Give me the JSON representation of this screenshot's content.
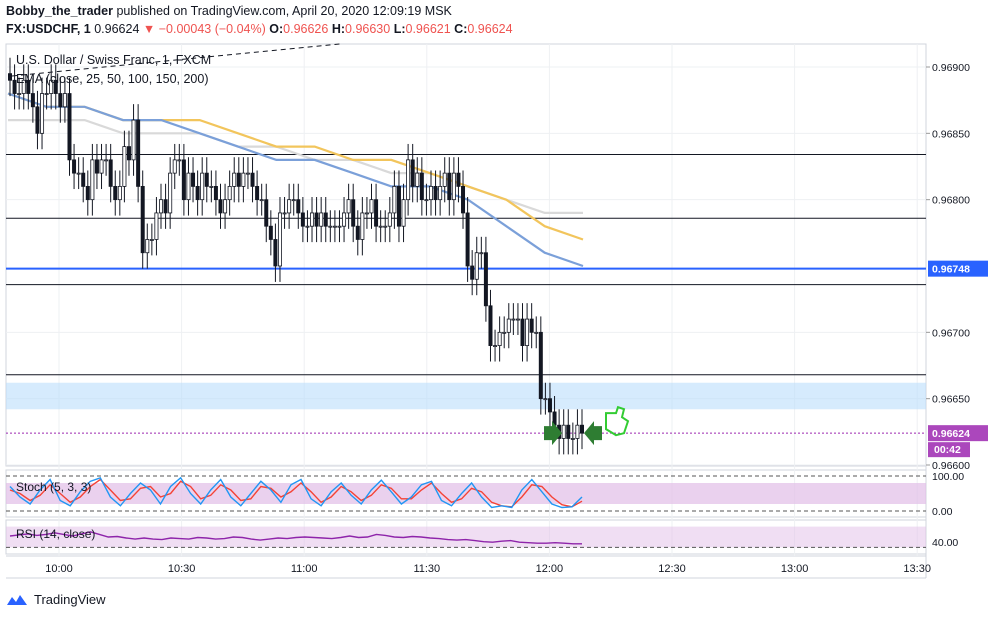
{
  "header": {
    "author": "Bobby_the_trader",
    "published_text": " published on TradingView.com, April 20, 2020 12:09:19 MSK",
    "symbol": "FX:USDCHF, 1",
    "last": "0.96624",
    "change": "▼ −0.00043 (−0.04%)",
    "o_label": "O:",
    "o_val": "0.96626",
    "h_label": "H:",
    "h_val": "0.96630",
    "l_label": "L:",
    "l_val": "0.96621",
    "c_label": "C:",
    "c_val": "0.96624"
  },
  "legend": {
    "instrument": "U.S. Dollar / Swiss Franc, 1, FXCM",
    "ma": "EMA (close, 25, 50, 100, 150, 200)"
  },
  "footer": {
    "brand": "TradingView"
  },
  "colors": {
    "up": "#131722",
    "down": "#131722",
    "ema_fast": "#f2c55c",
    "ema_mid": "#7ba0d9",
    "ema_slow": "#d9d9d9",
    "support": "#2962ff",
    "zone": "#bbdefb",
    "last_price": "#9c27b0",
    "osc_bg": "#e1bee7",
    "stoch_k": "#2196f3",
    "stoch_d": "#f44336",
    "rsi": "#8e24aa",
    "signal_arrow": "#2e7d32",
    "signal_hand": "#33cc33"
  },
  "chart_data": {
    "type": "candlestick",
    "main_pane": {
      "y_ticks": [
        "0.96900",
        "0.96850",
        "0.96800",
        "0.96700",
        "0.96650",
        "0.96600"
      ],
      "ylim": [
        0.9659,
        0.9693
      ],
      "x_ticks": [
        "10:00",
        "10:30",
        "11:00",
        "11:30",
        "12:00",
        "12:30",
        "13:00",
        "13:30"
      ],
      "price_tags": [
        {
          "label": "0.96748",
          "value": 0.96748,
          "color": "#2962ff"
        },
        {
          "label": "0.96624",
          "value": 0.96624,
          "color": "#ab47bc"
        }
      ],
      "countdown": "00:42",
      "horizontal_levels": [
        0.96834,
        0.96786,
        0.96736,
        0.96668
      ],
      "support_level": 0.96748,
      "zone": [
        0.96642,
        0.96662
      ],
      "last_price": 0.96624,
      "candles_close": [
        0.9689,
        0.9688,
        0.9688,
        0.9689,
        0.9688,
        0.9687,
        0.9685,
        0.9688,
        0.9688,
        0.9689,
        0.9688,
        0.9687,
        0.9688,
        0.9683,
        0.9682,
        0.9682,
        0.9681,
        0.968,
        0.9683,
        0.9682,
        0.9683,
        0.9683,
        0.9681,
        0.968,
        0.9681,
        0.9684,
        0.9683,
        0.9686,
        0.9681,
        0.9676,
        0.9677,
        0.9677,
        0.9679,
        0.968,
        0.9679,
        0.9682,
        0.9683,
        0.9683,
        0.968,
        0.9682,
        0.9681,
        0.968,
        0.9682,
        0.9681,
        0.9681,
        0.968,
        0.9679,
        0.968,
        0.9681,
        0.9682,
        0.9681,
        0.9682,
        0.9682,
        0.9681,
        0.968,
        0.968,
        0.9678,
        0.9677,
        0.9675,
        0.9679,
        0.9679,
        0.968,
        0.968,
        0.9679,
        0.9678,
        0.9678,
        0.9679,
        0.9678,
        0.9679,
        0.9678,
        0.9678,
        0.9678,
        0.9678,
        0.9679,
        0.968,
        0.9678,
        0.9677,
        0.9679,
        0.9679,
        0.968,
        0.9678,
        0.9678,
        0.9678,
        0.9679,
        0.9681,
        0.9678,
        0.968,
        0.9683,
        0.9681,
        0.9682,
        0.968,
        0.968,
        0.9681,
        0.968,
        0.9681,
        0.9682,
        0.968,
        0.9682,
        0.9681,
        0.9679,
        0.9675,
        0.9674,
        0.9676,
        0.9676,
        0.9672,
        0.9669,
        0.9669,
        0.967,
        0.967,
        0.9671,
        0.9671,
        0.9671,
        0.9669,
        0.9671,
        0.967,
        0.967,
        0.9665,
        0.9665,
        0.9664,
        0.9663,
        0.9662,
        0.9663,
        0.9662,
        0.9662,
        0.9663,
        0.96624
      ],
      "ema_fast": [
        0.9688,
        0.9687,
        0.9687,
        0.9686,
        0.9686,
        0.9686,
        0.9685,
        0.9684,
        0.9684,
        0.9683,
        0.9683,
        0.9682,
        0.9681,
        0.968,
        0.9678,
        0.9677
      ],
      "ema_mid": [
        0.9688,
        0.9687,
        0.9687,
        0.9686,
        0.9686,
        0.9685,
        0.9684,
        0.9683,
        0.9683,
        0.9682,
        0.9681,
        0.9681,
        0.968,
        0.9678,
        0.9676,
        0.9675
      ],
      "ema_slow": [
        0.9686,
        0.9686,
        0.9686,
        0.9685,
        0.9685,
        0.9685,
        0.9684,
        0.9684,
        0.9683,
        0.9683,
        0.9682,
        0.9682,
        0.9681,
        0.968,
        0.9679,
        0.9679
      ]
    },
    "stoch_pane": {
      "label": "Stoch (5, 3, 3)",
      "y_ticks": [
        "100.00",
        "0.00"
      ],
      "ylim": [
        0,
        100
      ],
      "band": [
        20,
        80
      ],
      "k": [
        70,
        40,
        20,
        60,
        90,
        30,
        15,
        55,
        85,
        95,
        40,
        15,
        50,
        80,
        60,
        20,
        70,
        95,
        50,
        20,
        60,
        90,
        40,
        15,
        50,
        85,
        60,
        25,
        75,
        90,
        35,
        15,
        55,
        80,
        45,
        20,
        60,
        88,
        55,
        20,
        40,
        75,
        85,
        30,
        15,
        50,
        80,
        40,
        10,
        15,
        10,
        60,
        90,
        55,
        20,
        10,
        12,
        40
      ],
      "d": [
        60,
        50,
        30,
        45,
        75,
        50,
        25,
        40,
        70,
        90,
        60,
        30,
        35,
        65,
        70,
        40,
        50,
        85,
        70,
        35,
        45,
        75,
        60,
        30,
        35,
        70,
        65,
        40,
        55,
        80,
        55,
        25,
        40,
        70,
        55,
        30,
        45,
        75,
        65,
        35,
        35,
        60,
        80,
        50,
        25,
        35,
        65,
        55,
        25,
        15,
        12,
        40,
        75,
        70,
        40,
        18,
        12,
        28
      ]
    },
    "rsi_pane": {
      "label": "RSI (14, close)",
      "y_ticks": [
        "40.00"
      ],
      "ylim": [
        25,
        75
      ],
      "band": [
        30,
        70
      ],
      "values": [
        52,
        54,
        56,
        53,
        55,
        58,
        55,
        52,
        56,
        60,
        55,
        50,
        51,
        48,
        46,
        48,
        46,
        45,
        48,
        47,
        46,
        49,
        48,
        46,
        47,
        50,
        49,
        46,
        44,
        46,
        48,
        47,
        49,
        50,
        49,
        48,
        47,
        49,
        52,
        49,
        50,
        55,
        53,
        50,
        49,
        51,
        50,
        48,
        47,
        45,
        44,
        45,
        43,
        41,
        40,
        42,
        43,
        40,
        39,
        38,
        38,
        39,
        38,
        37,
        37
      ]
    }
  }
}
